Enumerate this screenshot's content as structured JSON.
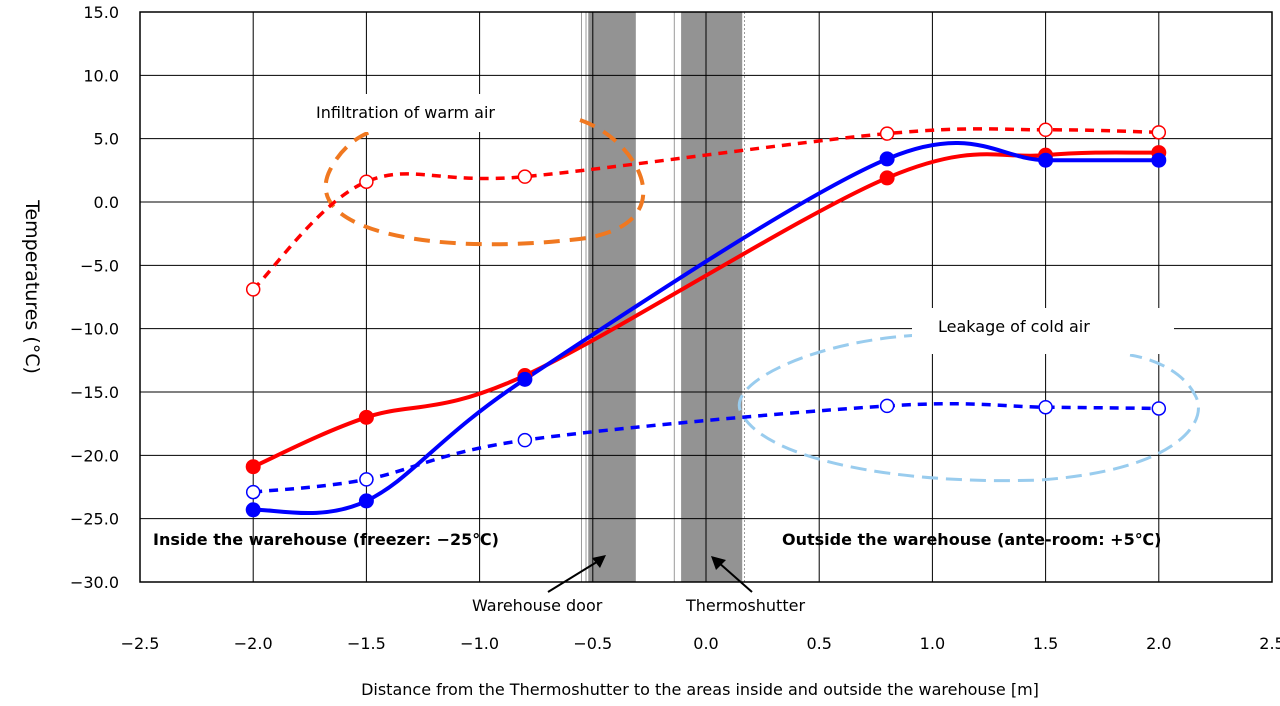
{
  "chart_data": {
    "type": "line",
    "xlabel": "Distance from the Thermoshutter to the areas inside and outside the warehouse [m]",
    "ylabel": "Temperatures (°C)",
    "xlim": [
      -2.5,
      2.5
    ],
    "ylim": [
      -30,
      15
    ],
    "xticks": [
      "−2.5",
      "−2.0",
      "−1.5",
      "−1.0",
      "−0.5",
      "0.0",
      "0.5",
      "1.0",
      "1.5",
      "2.0",
      "2.5"
    ],
    "yticks": [
      "15.0",
      "10.0",
      "5.0",
      "0.0",
      "−5.0",
      "−10.0",
      "−15.0",
      "−20.0",
      "−25.0",
      "−30.0"
    ],
    "grid": true,
    "series": [
      {
        "color": "#ff0000",
        "dashed": false,
        "marker": "filled",
        "x": [
          -2.0,
          -1.5,
          -0.8,
          0.8,
          1.5,
          2.0
        ],
        "y": [
          -20.9,
          -17.0,
          -13.7,
          1.9,
          3.7,
          3.9
        ]
      },
      {
        "color": "#0000ff",
        "dashed": false,
        "marker": "filled",
        "x": [
          -2.0,
          -1.5,
          -0.8,
          0.8,
          1.5,
          2.0
        ],
        "y": [
          -24.3,
          -23.6,
          -14.0,
          3.4,
          3.3,
          3.3
        ]
      },
      {
        "color": "#ff0000",
        "dashed": true,
        "marker": "open",
        "x": [
          -2.0,
          -1.5,
          -0.8,
          0.8,
          1.5,
          2.0
        ],
        "y": [
          -6.9,
          1.6,
          2.0,
          5.4,
          5.7,
          5.5
        ]
      },
      {
        "color": "#0000ff",
        "dashed": true,
        "marker": "open",
        "x": [
          -2.0,
          -1.5,
          -0.8,
          0.8,
          1.5,
          2.0
        ],
        "y": [
          -22.9,
          -21.9,
          -18.8,
          -16.1,
          -16.2,
          -16.3
        ]
      }
    ],
    "bands": [
      {
        "name": "Warehouse door",
        "x": [
          -0.52,
          -0.31
        ]
      },
      {
        "name": "Thermoshutter",
        "x": [
          -0.11,
          0.16
        ]
      }
    ],
    "annotations": {
      "infiltration": "Infiltration of warm air",
      "leakage": "Leakage of cold air",
      "inside": "Inside the warehouse (freezer: −25℃)",
      "outside": "Outside the warehouse (ante-room: +5℃)",
      "door": "Warehouse door",
      "shutter": "Thermoshutter"
    },
    "colors": {
      "infiltration_ellipse": "#f07820",
      "leakage_ellipse": "#99ccee",
      "band": "#939393"
    }
  }
}
